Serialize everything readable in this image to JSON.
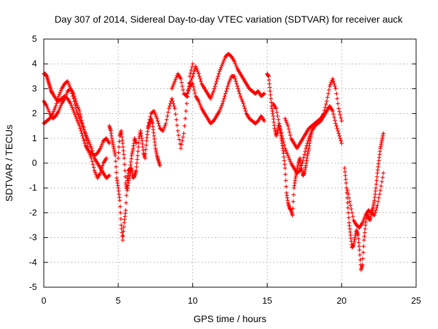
{
  "chart_data": {
    "type": "scatter",
    "title": "Day 307 of 2014, Sidereal Day-to-day VTEC variation (SDTVAR) for receiver auck",
    "xlabel": "GPS time / hours",
    "ylabel": "SDTVAR / TECUs",
    "xlim": [
      0,
      25
    ],
    "ylim": [
      -5,
      5
    ],
    "xticks": [
      0,
      5,
      10,
      15,
      20,
      25
    ],
    "yticks": [
      -5,
      -4,
      -3,
      -2,
      -1,
      0,
      1,
      2,
      3,
      4,
      5
    ],
    "grid": true,
    "legend": "",
    "series": [
      {
        "name": "SDTVAR",
        "color": "#ff0000",
        "marker": "plus",
        "segments": [
          {
            "x": [
              0.0,
              0.1,
              0.2,
              0.3,
              0.4,
              0.5,
              0.6,
              0.8,
              1.0,
              1.2,
              1.4,
              1.6,
              1.8,
              2.0,
              2.2,
              2.4,
              2.6,
              2.8,
              3.0,
              3.2,
              3.4,
              3.6,
              3.8,
              4.0,
              4.2,
              4.4
            ],
            "y": [
              3.6,
              3.6,
              3.5,
              3.3,
              3.1,
              2.9,
              2.8,
              2.6,
              2.5,
              2.6,
              2.7,
              2.6,
              2.4,
              2.1,
              1.8,
              1.5,
              1.1,
              0.7,
              0.5,
              0.4,
              0.3,
              0.4,
              0.6,
              0.9,
              1.0,
              0.8
            ]
          },
          {
            "x": [
              0.0,
              0.2,
              0.4,
              0.6,
              0.8,
              1.0,
              1.2,
              1.4,
              1.6,
              1.8,
              2.0,
              2.2,
              2.4,
              2.6,
              2.8,
              3.0,
              3.2,
              3.4,
              3.6,
              3.8,
              4.0,
              4.2,
              4.4
            ],
            "y": [
              1.6,
              1.7,
              1.8,
              2.0,
              2.3,
              2.7,
              3.0,
              3.2,
              3.3,
              3.0,
              2.6,
              2.1,
              1.8,
              1.5,
              1.2,
              0.9,
              0.6,
              0.2,
              0.0,
              -0.2,
              -0.4,
              -0.6,
              -0.5
            ]
          },
          {
            "x": [
              0.0,
              0.2,
              0.4,
              0.6,
              0.8,
              1.0,
              1.2,
              1.4,
              1.6,
              1.8,
              2.0,
              2.2,
              2.4,
              2.6,
              2.8,
              3.0,
              3.2,
              3.4,
              3.6,
              3.8,
              4.0,
              4.2
            ],
            "y": [
              2.5,
              2.3,
              2.0,
              1.8,
              1.9,
              2.1,
              2.4,
              2.6,
              2.9,
              3.0,
              2.8,
              2.4,
              2.1,
              1.6,
              1.1,
              0.5,
              0.2,
              -0.3,
              -0.6,
              -0.4,
              0.0,
              0.2
            ]
          },
          {
            "x": [
              4.4,
              4.5,
              4.6,
              4.7,
              4.8,
              4.9,
              5.0,
              5.1,
              5.2,
              5.3,
              5.4,
              5.5,
              5.6,
              5.7,
              5.8,
              5.9,
              6.0,
              6.1,
              6.2
            ],
            "y": [
              1.5,
              1.3,
              0.9,
              0.6,
              0.3,
              -0.6,
              -1.0,
              -1.5,
              -2.5,
              -3.1,
              -2.4,
              -1.9,
              -0.7,
              -0.3,
              -0.2,
              0.3,
              0.6,
              1.0,
              0.8
            ]
          },
          {
            "x": [
              5.0,
              5.1,
              5.2,
              5.3,
              5.4,
              5.5,
              5.6,
              5.7,
              5.8,
              5.9,
              6.0,
              6.1,
              6.2,
              6.3,
              6.4,
              6.5,
              6.6,
              6.7,
              6.8,
              6.9,
              7.0,
              7.1,
              7.2,
              7.3,
              7.4,
              7.5,
              7.6,
              7.7,
              7.8
            ],
            "y": [
              0.2,
              1.1,
              1.3,
              0.8,
              0.2,
              -0.8,
              -1.1,
              -0.7,
              -0.4,
              -0.2,
              -0.6,
              -0.5,
              -0.3,
              0.3,
              1.0,
              1.3,
              0.9,
              0.4,
              0.2,
              0.9,
              1.4,
              1.6,
              1.8,
              1.6,
              1.1,
              0.6,
              0.3,
              0.1,
              -0.1
            ]
          },
          {
            "x": [
              7.0,
              7.2,
              7.4,
              7.6,
              7.8,
              8.0,
              8.2,
              8.4,
              8.6,
              8.8,
              9.0,
              9.2,
              9.4,
              9.6,
              9.8,
              10.0
            ],
            "y": [
              1.5,
              2.0,
              2.1,
              1.8,
              1.4,
              1.3,
              1.6,
              2.2,
              2.6,
              2.2,
              1.3,
              0.6,
              1.2,
              2.4,
              3.5,
              4.0
            ]
          },
          {
            "x": [
              8.6,
              8.8,
              9.0,
              9.2,
              9.4,
              9.6,
              9.8,
              10.0,
              10.2,
              10.4,
              10.6,
              10.8,
              11.0,
              11.2,
              11.4,
              11.6,
              11.8,
              12.0,
              12.2,
              12.4,
              12.6,
              12.8,
              13.0,
              13.2,
              13.4,
              13.6,
              13.8,
              14.0,
              14.2,
              14.4,
              14.6,
              14.8
            ],
            "y": [
              3.0,
              3.3,
              3.6,
              3.4,
              2.8,
              2.7,
              3.1,
              3.2,
              2.7,
              2.5,
              2.2,
              2.0,
              1.8,
              1.6,
              1.7,
              1.9,
              2.1,
              2.4,
              2.8,
              3.2,
              3.5,
              3.5,
              3.1,
              2.7,
              2.4,
              2.0,
              1.8,
              1.7,
              1.6,
              1.7,
              1.9,
              1.7
            ]
          },
          {
            "x": [
              9.6,
              9.8,
              10.0,
              10.2,
              10.4,
              10.6,
              10.8,
              11.0,
              11.2,
              11.4,
              11.6,
              11.8,
              12.0,
              12.2,
              12.4,
              12.6,
              12.8,
              13.0,
              13.2,
              13.4,
              13.6,
              13.8,
              14.0,
              14.2,
              14.4,
              14.6,
              14.8
            ],
            "y": [
              2.7,
              3.2,
              3.5,
              3.9,
              3.6,
              3.2,
              3.0,
              2.8,
              2.6,
              2.9,
              3.3,
              3.7,
              4.0,
              4.3,
              4.4,
              4.3,
              4.1,
              3.8,
              3.6,
              3.4,
              3.2,
              3.0,
              2.9,
              2.8,
              2.9,
              2.7,
              2.8
            ]
          },
          {
            "x": [
              15.0,
              15.1,
              15.2,
              15.3,
              15.4,
              15.5,
              15.6,
              15.7,
              15.8,
              15.9,
              16.0,
              16.1,
              16.2,
              16.3,
              16.4,
              16.5,
              16.6,
              16.7,
              16.8,
              16.9,
              17.0,
              17.1,
              17.2,
              17.3,
              17.4,
              17.5,
              17.6,
              17.7,
              17.8,
              17.9,
              18.0
            ],
            "y": [
              3.6,
              3.5,
              2.9,
              2.3,
              1.9,
              1.4,
              1.1,
              1.3,
              1.6,
              1.2,
              0.8,
              0.4,
              -0.2,
              -1.2,
              -1.6,
              -1.8,
              -1.9,
              -2.1,
              -1.0,
              -0.6,
              -0.3,
              0.0,
              0.2,
              -0.2,
              -0.5,
              -0.4,
              -0.1,
              0.3,
              0.6,
              1.0,
              1.3
            ]
          },
          {
            "x": [
              15.4,
              15.6,
              15.8,
              16.0,
              16.2,
              16.4,
              16.6,
              16.8,
              17.0,
              17.2,
              17.4,
              17.6,
              17.8,
              18.0,
              18.2,
              18.4,
              18.6,
              18.8,
              19.0,
              19.2,
              19.4,
              19.6,
              19.8,
              20.0
            ],
            "y": [
              2.4,
              2.2,
              1.6,
              1.1,
              0.6,
              0.3,
              0.0,
              -0.2,
              -0.4,
              -0.3,
              0.1,
              0.6,
              1.0,
              1.3,
              1.5,
              1.6,
              1.7,
              1.9,
              2.1,
              2.3,
              2.1,
              1.6,
              1.2,
              0.8
            ]
          },
          {
            "x": [
              16.2,
              16.4,
              16.6,
              16.8,
              17.0,
              17.2,
              17.4,
              17.6,
              17.8,
              18.0,
              18.2,
              18.4,
              18.6,
              18.8,
              19.0,
              19.2,
              19.4,
              19.6,
              19.8,
              20.0
            ],
            "y": [
              1.8,
              1.5,
              1.0,
              0.8,
              0.6,
              0.8,
              1.0,
              1.2,
              1.4,
              1.5,
              1.6,
              1.7,
              1.8,
              2.0,
              2.5,
              3.1,
              3.4,
              3.0,
              2.2,
              1.7
            ]
          },
          {
            "x": [
              20.2,
              20.3,
              20.4,
              20.5,
              20.6,
              20.7,
              20.8,
              20.9,
              21.0,
              21.1,
              21.2,
              21.3,
              21.4,
              21.5,
              21.6,
              21.7,
              21.8,
              21.9,
              22.0,
              22.1,
              22.2,
              22.3,
              22.4,
              22.5,
              22.6,
              22.7,
              22.8
            ],
            "y": [
              -0.2,
              -0.8,
              -1.6,
              -2.4,
              -2.9,
              -3.4,
              -3.3,
              -3.0,
              -2.7,
              -2.9,
              -3.5,
              -4.3,
              -4.1,
              -3.1,
              -2.5,
              -2.0,
              -2.2,
              -2.3,
              -2.0,
              -1.8,
              -1.5,
              -1.0,
              -0.4,
              0.1,
              0.6,
              0.9,
              1.2
            ]
          },
          {
            "x": [
              20.4,
              20.6,
              20.8,
              21.0,
              21.2,
              21.4,
              21.6,
              21.8,
              22.0,
              22.2,
              22.4,
              22.6,
              22.8
            ],
            "y": [
              -1.1,
              -1.7,
              -2.3,
              -2.5,
              -2.6,
              -2.4,
              -2.1,
              -1.9,
              -2.0,
              -2.1,
              -1.7,
              -1.1,
              -0.4
            ]
          }
        ]
      }
    ]
  }
}
